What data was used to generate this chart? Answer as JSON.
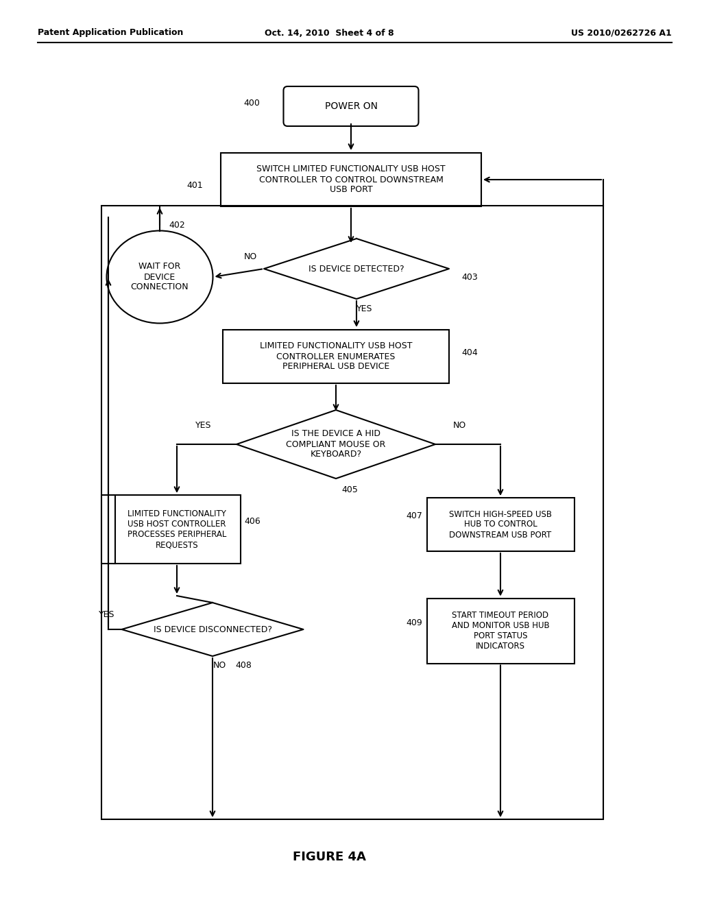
{
  "title": "FIGURE 4A",
  "header_left": "Patent Application Publication",
  "header_center": "Oct. 14, 2010  Sheet 4 of 8",
  "header_right": "US 2010/0262726 A1",
  "background_color": "#ffffff",
  "line_color": "#000000",
  "text_color": "#000000",
  "fig_width": 10.24,
  "fig_height": 13.2,
  "dpi": 100
}
